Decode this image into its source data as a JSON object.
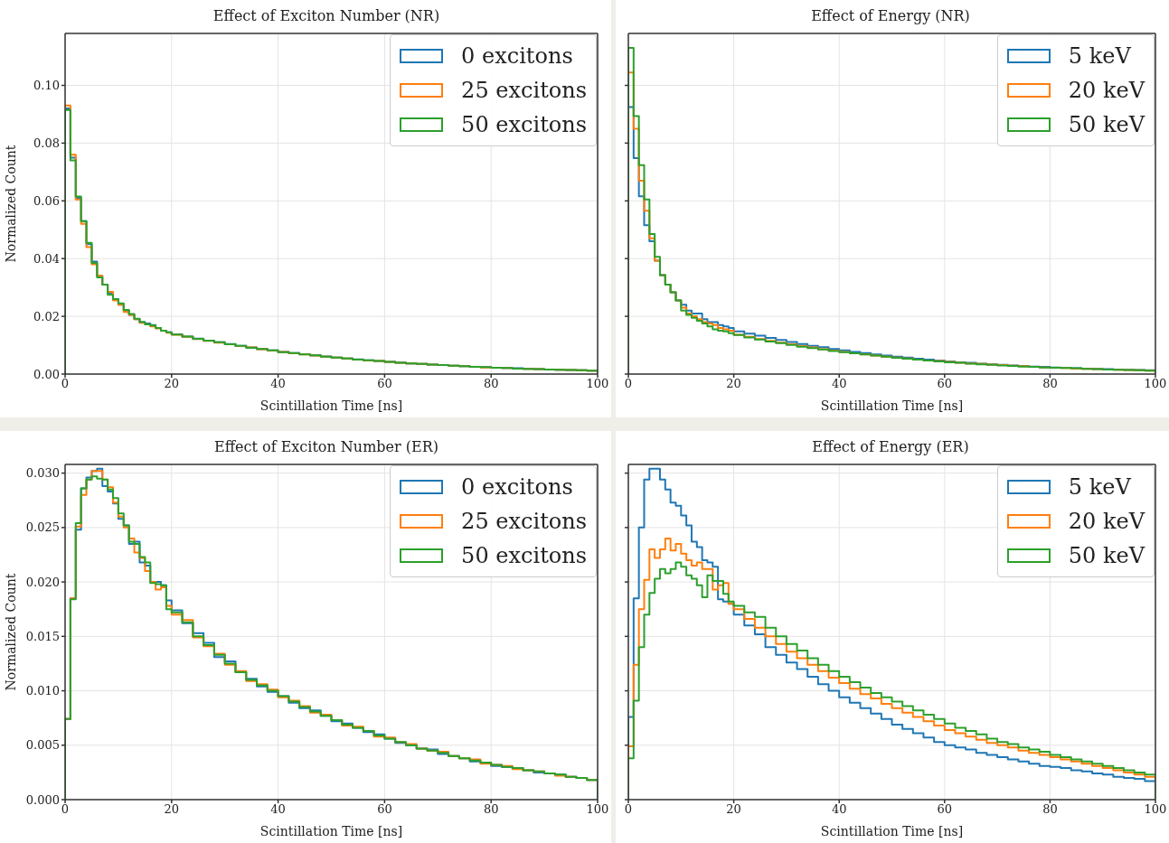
{
  "chart_data": [
    {
      "type": "histogram",
      "title": "Effect of Exciton Number (NR)",
      "xlabel": "Scintillation Time [ns]",
      "ylabel": "Normalized Count",
      "xlim": [
        0,
        100
      ],
      "xticks": [
        0,
        20,
        40,
        60,
        80,
        100
      ],
      "ylim": [
        0,
        0.118
      ],
      "yticks": [
        {
          "value": 0,
          "label": "0.00"
        },
        {
          "value": 0.02,
          "label": "0.02"
        },
        {
          "value": 0.04,
          "label": "0.04"
        },
        {
          "value": 0.06,
          "label": "0.06"
        },
        {
          "value": 0.08,
          "label": "0.08"
        },
        {
          "value": 0.1,
          "label": "0.10"
        }
      ],
      "grid": true,
      "legend": "top right",
      "bins": [
        0,
        1,
        2,
        3,
        4,
        5,
        6,
        7,
        8,
        9,
        10,
        11,
        12,
        13,
        14,
        15,
        16,
        17,
        18,
        19,
        20,
        22,
        24,
        26,
        28,
        30,
        32,
        34,
        36,
        38,
        40,
        42,
        44,
        46,
        48,
        50,
        52,
        54,
        56,
        58,
        60,
        62,
        64,
        66,
        68,
        70,
        72,
        74,
        76,
        78,
        80,
        82,
        84,
        86,
        88,
        90,
        92,
        94,
        96,
        98,
        100
      ],
      "series": [
        {
          "name": "0 excitons",
          "color": "#1f77b4",
          "values": [
            0.092,
            0.075,
            0.061,
            0.053,
            0.045,
            0.039,
            0.034,
            0.031,
            0.028,
            0.026,
            0.024,
            0.022,
            0.0205,
            0.019,
            0.018,
            0.0175,
            0.017,
            0.016,
            0.015,
            0.0145,
            0.0138,
            0.013,
            0.0123,
            0.0116,
            0.011,
            0.0104,
            0.0098,
            0.0092,
            0.0087,
            0.0082,
            0.0077,
            0.0073,
            0.0069,
            0.0065,
            0.0061,
            0.0057,
            0.0054,
            0.0051,
            0.0048,
            0.0045,
            0.0042,
            0.004,
            0.0037,
            0.0035,
            0.0033,
            0.0031,
            0.0029,
            0.0027,
            0.0025,
            0.0024,
            0.0022,
            0.0021,
            0.002,
            0.0018,
            0.0017,
            0.0016,
            0.0015,
            0.0014,
            0.0013,
            0.0012
          ]
        },
        {
          "name": "25 excitons",
          "color": "#ff7f0e",
          "values": [
            0.093,
            0.076,
            0.0605,
            0.052,
            0.044,
            0.038,
            0.034,
            0.031,
            0.0285,
            0.0255,
            0.024,
            0.0215,
            0.0205,
            0.019,
            0.0178,
            0.0172,
            0.0165,
            0.0158,
            0.015,
            0.0143,
            0.0136,
            0.0129,
            0.0121,
            0.0115,
            0.0109,
            0.0103,
            0.0097,
            0.0092,
            0.0086,
            0.0081,
            0.0077,
            0.0072,
            0.0068,
            0.0064,
            0.006,
            0.0057,
            0.0054,
            0.005,
            0.0047,
            0.0045,
            0.0042,
            0.0039,
            0.0037,
            0.0035,
            0.0033,
            0.0031,
            0.0029,
            0.0027,
            0.0025,
            0.0023,
            0.0022,
            0.0021,
            0.0019,
            0.0018,
            0.0017,
            0.0016,
            0.0015,
            0.0014,
            0.0013,
            0.0012
          ]
        },
        {
          "name": "50 excitons",
          "color": "#2ca02c",
          "values": [
            0.0915,
            0.074,
            0.0615,
            0.053,
            0.0455,
            0.0385,
            0.0335,
            0.031,
            0.0275,
            0.026,
            0.0245,
            0.0222,
            0.0208,
            0.0192,
            0.018,
            0.0172,
            0.0168,
            0.016,
            0.015,
            0.0145,
            0.0137,
            0.013,
            0.0122,
            0.0116,
            0.011,
            0.0103,
            0.0098,
            0.0091,
            0.0087,
            0.0082,
            0.0076,
            0.0073,
            0.0068,
            0.0065,
            0.006,
            0.0057,
            0.0054,
            0.005,
            0.0048,
            0.0045,
            0.0042,
            0.0039,
            0.0037,
            0.0035,
            0.0033,
            0.0031,
            0.0029,
            0.0027,
            0.0025,
            0.0024,
            0.0022,
            0.0021,
            0.0019,
            0.0018,
            0.0017,
            0.0016,
            0.0015,
            0.0014,
            0.0013,
            0.0012
          ]
        }
      ]
    },
    {
      "type": "histogram",
      "title": "Effect of Energy (NR)",
      "xlabel": "Scintillation Time [ns]",
      "xlim": [
        0,
        100
      ],
      "xticks": [
        0,
        20,
        40,
        60,
        80,
        100
      ],
      "ylim": [
        0,
        0.118
      ],
      "yticks": [
        {
          "value": 0,
          "label": null
        },
        {
          "value": 0.02,
          "label": null
        },
        {
          "value": 0.04,
          "label": null
        },
        {
          "value": 0.06,
          "label": null
        },
        {
          "value": 0.08,
          "label": null
        },
        {
          "value": 0.1,
          "label": null
        }
      ],
      "tick_labels": "x",
      "grid": true,
      "legend": "top right",
      "bins": [
        0,
        1,
        2,
        3,
        4,
        5,
        6,
        7,
        8,
        9,
        10,
        11,
        12,
        13,
        14,
        15,
        16,
        17,
        18,
        19,
        20,
        22,
        24,
        26,
        28,
        30,
        32,
        34,
        36,
        38,
        40,
        42,
        44,
        46,
        48,
        50,
        52,
        54,
        56,
        58,
        60,
        62,
        64,
        66,
        68,
        70,
        72,
        74,
        76,
        78,
        80,
        82,
        84,
        86,
        88,
        90,
        92,
        94,
        96,
        98,
        100
      ],
      "series": [
        {
          "name": "5 keV",
          "color": "#1f77b4",
          "values": [
            0.0925,
            0.0748,
            0.0616,
            0.0516,
            0.046,
            0.0393,
            0.0343,
            0.031,
            0.0283,
            0.0255,
            0.024,
            0.022,
            0.021,
            0.021,
            0.019,
            0.018,
            0.018,
            0.017,
            0.0165,
            0.016,
            0.0148,
            0.014,
            0.0133,
            0.0125,
            0.0118,
            0.0111,
            0.0104,
            0.0098,
            0.0093,
            0.0087,
            0.0082,
            0.0077,
            0.0073,
            0.0068,
            0.0064,
            0.006,
            0.0057,
            0.0053,
            0.005,
            0.0047,
            0.0044,
            0.0041,
            0.0039,
            0.0036,
            0.0034,
            0.0032,
            0.003,
            0.0028,
            0.0026,
            0.0025,
            0.0023,
            0.0022,
            0.002,
            0.0019,
            0.0018,
            0.0017,
            0.0016,
            0.0015,
            0.0014,
            0.0013
          ]
        },
        {
          "name": "20 keV",
          "color": "#ff7f0e",
          "values": [
            0.1045,
            0.085,
            0.067,
            0.0566,
            0.047,
            0.0393,
            0.0343,
            0.031,
            0.0283,
            0.0255,
            0.023,
            0.021,
            0.02,
            0.019,
            0.018,
            0.0175,
            0.017,
            0.016,
            0.0155,
            0.015,
            0.0136,
            0.0129,
            0.0121,
            0.0115,
            0.0109,
            0.0103,
            0.0097,
            0.0092,
            0.0086,
            0.0081,
            0.0077,
            0.0072,
            0.0068,
            0.0064,
            0.006,
            0.0057,
            0.0054,
            0.005,
            0.0047,
            0.0045,
            0.0042,
            0.0039,
            0.0037,
            0.0035,
            0.0033,
            0.0031,
            0.0029,
            0.0027,
            0.0025,
            0.0023,
            0.0022,
            0.0021,
            0.0019,
            0.0018,
            0.0017,
            0.0016,
            0.0015,
            0.0014,
            0.0013,
            0.0012
          ]
        },
        {
          "name": "50 keV",
          "color": "#2ca02c",
          "values": [
            0.113,
            0.0894,
            0.0724,
            0.0605,
            0.0485,
            0.0406,
            0.0343,
            0.031,
            0.0283,
            0.0255,
            0.022,
            0.0205,
            0.0195,
            0.0185,
            0.0175,
            0.0165,
            0.0155,
            0.015,
            0.0148,
            0.0142,
            0.0135,
            0.0127,
            0.012,
            0.0113,
            0.0107,
            0.0101,
            0.0095,
            0.009,
            0.0085,
            0.008,
            0.0076,
            0.0072,
            0.0068,
            0.0064,
            0.006,
            0.0056,
            0.0053,
            0.005,
            0.0047,
            0.0044,
            0.0041,
            0.0039,
            0.0036,
            0.0034,
            0.0032,
            0.003,
            0.0028,
            0.0026,
            0.0025,
            0.0023,
            0.0022,
            0.0021,
            0.002,
            0.0018,
            0.0017,
            0.0016,
            0.0015,
            0.0014,
            0.0013,
            0.0012
          ]
        }
      ]
    },
    {
      "type": "histogram",
      "title": "Effect of Exciton Number (ER)",
      "xlabel": "Scintillation Time [ns]",
      "ylabel": "Normalized Count",
      "xlim": [
        0,
        100
      ],
      "xticks": [
        0,
        20,
        40,
        60,
        80,
        100
      ],
      "ylim": [
        0,
        0.0308
      ],
      "yticks": [
        {
          "value": 0,
          "label": "0.000"
        },
        {
          "value": 0.005,
          "label": "0.005"
        },
        {
          "value": 0.01,
          "label": "0.010"
        },
        {
          "value": 0.015,
          "label": "0.015"
        },
        {
          "value": 0.02,
          "label": "0.020"
        },
        {
          "value": 0.025,
          "label": "0.025"
        },
        {
          "value": 0.03,
          "label": "0.030"
        }
      ],
      "grid": true,
      "legend": "top right",
      "bins": [
        0,
        1,
        2,
        3,
        4,
        5,
        6,
        7,
        8,
        9,
        10,
        11,
        12,
        13,
        14,
        15,
        16,
        17,
        18,
        19,
        20,
        22,
        24,
        26,
        28,
        30,
        32,
        34,
        36,
        38,
        40,
        42,
        44,
        46,
        48,
        50,
        52,
        54,
        56,
        58,
        60,
        62,
        64,
        66,
        68,
        70,
        72,
        74,
        76,
        78,
        80,
        82,
        84,
        86,
        88,
        90,
        92,
        94,
        96,
        98,
        100
      ],
      "series": [
        {
          "name": "0 excitons",
          "color": "#1f77b4",
          "values": [
            0.0074,
            0.0185,
            0.0248,
            0.0286,
            0.0296,
            0.0302,
            0.0304,
            0.0288,
            0.0283,
            0.0272,
            0.0258,
            0.0252,
            0.0235,
            0.0237,
            0.0218,
            0.0215,
            0.02,
            0.02,
            0.0197,
            0.0183,
            0.0174,
            0.0162,
            0.0153,
            0.0144,
            0.0131,
            0.0127,
            0.0117,
            0.0111,
            0.0104,
            0.0099,
            0.0095,
            0.0089,
            0.0084,
            0.0082,
            0.0077,
            0.0072,
            0.007,
            0.0066,
            0.0062,
            0.006,
            0.0056,
            0.0052,
            0.005,
            0.0047,
            0.0046,
            0.0042,
            0.004,
            0.0038,
            0.0035,
            0.0034,
            0.0031,
            0.003,
            0.0029,
            0.0027,
            0.0025,
            0.0024,
            0.0023,
            0.0021,
            0.002,
            0.0018
          ]
        },
        {
          "name": "25 excitons",
          "color": "#ff7f0e",
          "values": [
            0.0074,
            0.0185,
            0.0251,
            0.028,
            0.0294,
            0.0302,
            0.0302,
            0.0294,
            0.0287,
            0.0273,
            0.026,
            0.025,
            0.024,
            0.0227,
            0.0222,
            0.021,
            0.02,
            0.0193,
            0.0195,
            0.0178,
            0.017,
            0.0165,
            0.0149,
            0.0141,
            0.0134,
            0.0124,
            0.0118,
            0.0109,
            0.0106,
            0.0101,
            0.0094,
            0.0091,
            0.0086,
            0.008,
            0.0078,
            0.0073,
            0.0068,
            0.0067,
            0.0063,
            0.0058,
            0.0057,
            0.0053,
            0.0051,
            0.0047,
            0.0045,
            0.0044,
            0.004,
            0.0038,
            0.0037,
            0.0033,
            0.0032,
            0.0031,
            0.0028,
            0.0027,
            0.0026,
            0.0024,
            0.0022,
            0.0021,
            0.002,
            0.0018
          ]
        },
        {
          "name": "50 excitons",
          "color": "#2ca02c",
          "values": [
            0.0074,
            0.0184,
            0.0254,
            0.0286,
            0.0294,
            0.0297,
            0.0295,
            0.0294,
            0.0285,
            0.0277,
            0.0263,
            0.0252,
            0.0237,
            0.0235,
            0.0223,
            0.0218,
            0.0199,
            0.0198,
            0.0197,
            0.0175,
            0.0172,
            0.0163,
            0.015,
            0.0142,
            0.0133,
            0.0125,
            0.0117,
            0.011,
            0.0105,
            0.01,
            0.0095,
            0.009,
            0.0085,
            0.0081,
            0.0077,
            0.0073,
            0.0069,
            0.0066,
            0.0063,
            0.0059,
            0.0056,
            0.0053,
            0.005,
            0.0047,
            0.0045,
            0.0043,
            0.004,
            0.0038,
            0.0036,
            0.0034,
            0.0032,
            0.003,
            0.0029,
            0.0027,
            0.0026,
            0.0024,
            0.0023,
            0.0021,
            0.002,
            0.0018
          ]
        }
      ]
    },
    {
      "type": "histogram",
      "title": "Effect of Energy (ER)",
      "xlabel": "Scintillation Time [ns]",
      "xlim": [
        0,
        100
      ],
      "xticks": [
        0,
        20,
        40,
        60,
        80,
        100
      ],
      "ylim": [
        0,
        0.0308
      ],
      "yticks": [
        {
          "value": 0,
          "label": null
        },
        {
          "value": 0.005,
          "label": null
        },
        {
          "value": 0.01,
          "label": null
        },
        {
          "value": 0.015,
          "label": null
        },
        {
          "value": 0.02,
          "label": null
        },
        {
          "value": 0.025,
          "label": null
        },
        {
          "value": 0.03,
          "label": null
        }
      ],
      "tick_labels": "x",
      "grid": true,
      "legend": "top right",
      "bins": [
        0,
        1,
        2,
        3,
        4,
        5,
        6,
        7,
        8,
        9,
        10,
        11,
        12,
        13,
        14,
        15,
        16,
        17,
        18,
        19,
        20,
        22,
        24,
        26,
        28,
        30,
        32,
        34,
        36,
        38,
        40,
        42,
        44,
        46,
        48,
        50,
        52,
        54,
        56,
        58,
        60,
        62,
        64,
        66,
        68,
        70,
        72,
        74,
        76,
        78,
        80,
        82,
        84,
        86,
        88,
        90,
        92,
        94,
        96,
        98,
        100
      ],
      "series": [
        {
          "name": "5 keV",
          "color": "#1f77b4",
          "values": [
            0.0076,
            0.0185,
            0.025,
            0.0294,
            0.0304,
            0.0304,
            0.0294,
            0.0285,
            0.0273,
            0.027,
            0.0261,
            0.0252,
            0.0237,
            0.0232,
            0.022,
            0.0218,
            0.0214,
            0.0184,
            0.0182,
            0.018,
            0.017,
            0.016,
            0.0152,
            0.014,
            0.0133,
            0.0126,
            0.012,
            0.0113,
            0.0106,
            0.01,
            0.0094,
            0.0089,
            0.0084,
            0.0079,
            0.0074,
            0.0069,
            0.0065,
            0.0061,
            0.0057,
            0.0053,
            0.005,
            0.0048,
            0.0046,
            0.0043,
            0.0041,
            0.0039,
            0.0037,
            0.0035,
            0.0033,
            0.0031,
            0.003,
            0.0029,
            0.0027,
            0.0026,
            0.0024,
            0.0023,
            0.0021,
            0.002,
            0.0019,
            0.0017
          ]
        },
        {
          "name": "20 keV",
          "color": "#ff7f0e",
          "values": [
            0.0049,
            0.0124,
            0.0175,
            0.0202,
            0.023,
            0.0222,
            0.023,
            0.024,
            0.0229,
            0.0235,
            0.0226,
            0.022,
            0.0215,
            0.0218,
            0.0212,
            0.0212,
            0.0193,
            0.0197,
            0.0199,
            0.018,
            0.0175,
            0.0166,
            0.0158,
            0.015,
            0.0143,
            0.0136,
            0.013,
            0.0124,
            0.0118,
            0.0112,
            0.0107,
            0.0102,
            0.0097,
            0.0093,
            0.0088,
            0.0084,
            0.008,
            0.0076,
            0.0072,
            0.0068,
            0.0064,
            0.0061,
            0.0058,
            0.0055,
            0.0052,
            0.005,
            0.0048,
            0.0045,
            0.0043,
            0.0041,
            0.0039,
            0.0037,
            0.0035,
            0.0033,
            0.0031,
            0.0029,
            0.0027,
            0.0025,
            0.0023,
            0.0021
          ]
        },
        {
          "name": "50 keV",
          "color": "#2ca02c",
          "values": [
            0.0038,
            0.0091,
            0.014,
            0.017,
            0.019,
            0.0203,
            0.0212,
            0.0208,
            0.0212,
            0.0218,
            0.0214,
            0.0206,
            0.0203,
            0.0197,
            0.0186,
            0.0206,
            0.0201,
            0.0201,
            0.0189,
            0.0182,
            0.0178,
            0.0172,
            0.0168,
            0.0158,
            0.015,
            0.0143,
            0.0137,
            0.013,
            0.0124,
            0.0118,
            0.0113,
            0.0108,
            0.0103,
            0.0098,
            0.0094,
            0.009,
            0.0086,
            0.0082,
            0.0078,
            0.0074,
            0.007,
            0.0066,
            0.0063,
            0.006,
            0.0056,
            0.0053,
            0.0051,
            0.0048,
            0.0046,
            0.0044,
            0.0041,
            0.0039,
            0.0037,
            0.0035,
            0.0033,
            0.0031,
            0.0029,
            0.0027,
            0.0025,
            0.0023
          ]
        }
      ]
    }
  ]
}
